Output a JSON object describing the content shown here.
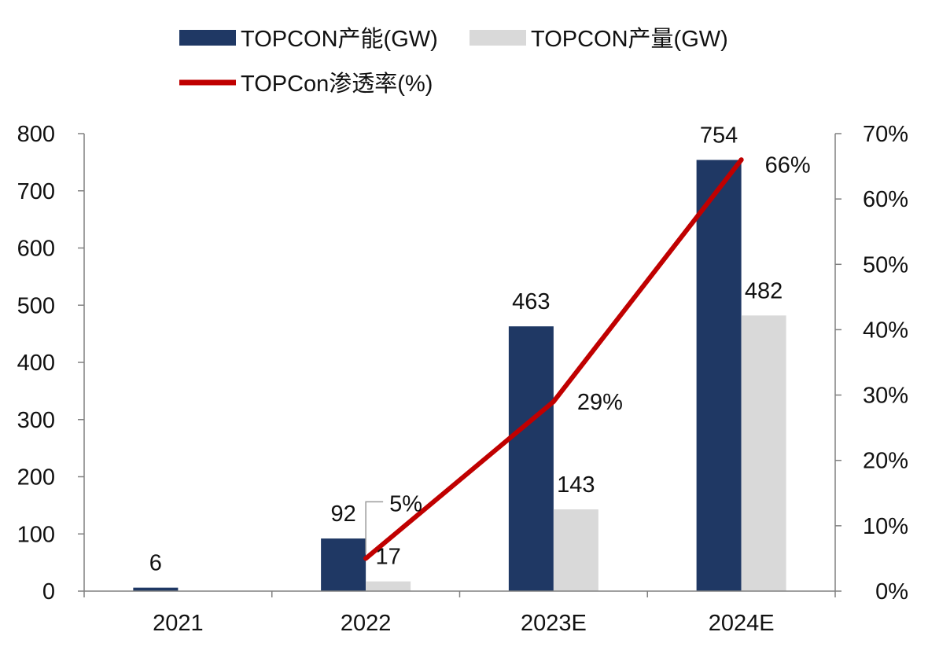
{
  "chart_data": {
    "type": "bar",
    "title": "",
    "xlabel": "",
    "ylabel": "",
    "categories": [
      "2021",
      "2022",
      "2023E",
      "2024E"
    ],
    "series": [
      {
        "name": "TOPCON产能(GW)",
        "kind": "bar",
        "axis": "left",
        "color": "#1f3864",
        "values": [
          6,
          92,
          463,
          754
        ],
        "labels": [
          "6",
          "92",
          "463",
          "754"
        ]
      },
      {
        "name": "TOPCON产量(GW)",
        "kind": "bar",
        "axis": "left",
        "color": "#d9d9d9",
        "values": [
          null,
          17,
          143,
          482
        ],
        "labels": [
          "",
          "17",
          "143",
          "482"
        ]
      },
      {
        "name": "TOPCon渗透率(%)",
        "kind": "line",
        "axis": "right",
        "color": "#c00000",
        "values": [
          null,
          5,
          29,
          66
        ],
        "labels": [
          "",
          "5%",
          "29%",
          "66%"
        ]
      }
    ],
    "ylim": [
      0,
      800
    ],
    "yticks": [
      "0",
      "100",
      "200",
      "300",
      "400",
      "500",
      "600",
      "700",
      "800"
    ],
    "y2lim": [
      0,
      70
    ],
    "y2ticks": [
      "0%",
      "10%",
      "20%",
      "30%",
      "40%",
      "50%",
      "60%",
      "70%"
    ],
    "grid": false,
    "legend_position": "top"
  }
}
